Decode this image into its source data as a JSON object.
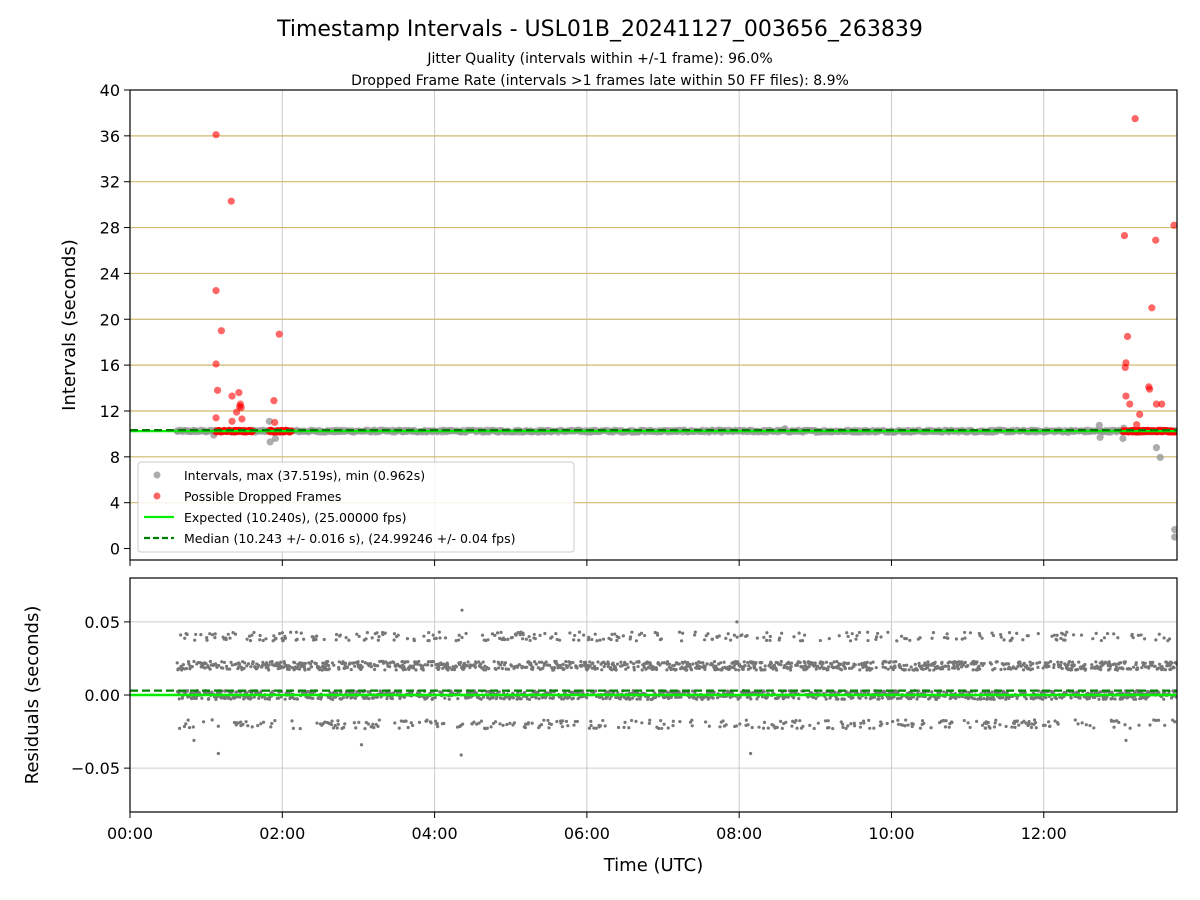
{
  "title": "Timestamp Intervals - USL01B_20241127_003656_263839",
  "subtitle_1": "Jitter Quality (intervals within +/-1 frame): 96.0%",
  "subtitle_2": "Dropped Frame Rate (intervals >1 frames late within 50 FF files): 8.9%",
  "chart_data": [
    {
      "type": "scatter",
      "ylabel": "Intervals (seconds)",
      "xlabel": "",
      "xlim": [
        0,
        13.75
      ],
      "ylim": [
        -1,
        40
      ],
      "grid": true,
      "legend_position": "lower-left",
      "xticks": [
        0,
        2,
        4,
        6,
        8,
        10,
        12
      ],
      "xtick_labels": [
        "",
        "",
        "",
        "",
        "",
        "",
        ""
      ],
      "yticks": [
        0,
        4,
        8,
        12,
        16,
        20,
        24,
        28,
        32,
        36,
        40
      ],
      "ytick_labels": [
        "0",
        "4",
        "8",
        "12",
        "16",
        "20",
        "24",
        "28",
        "32",
        "36",
        "40"
      ],
      "series": [
        {
          "name": "Intervals, max (37.519s), min (0.962s)",
          "color": "#999999",
          "points": [
            [
              0.62,
              10.24
            ],
            [
              1.1,
              9.9
            ],
            [
              1.83,
              11.1
            ],
            [
              1.84,
              9.3
            ],
            [
              1.91,
              9.6
            ],
            [
              8.6,
              10.45
            ],
            [
              12.73,
              10.75
            ],
            [
              12.74,
              9.7
            ],
            [
              13.04,
              9.6
            ],
            [
              13.05,
              10.5
            ],
            [
              13.48,
              8.8
            ],
            [
              13.53,
              7.95
            ],
            [
              13.72,
              1.65
            ],
            [
              13.72,
              1.0
            ],
            [
              13.73,
              10.2
            ]
          ]
        },
        {
          "name": "Possible Dropped Frames",
          "color": "#ff0000",
          "points": [
            [
              1.13,
              36.1
            ],
            [
              1.13,
              22.5
            ],
            [
              1.13,
              16.1
            ],
            [
              1.15,
              13.8
            ],
            [
              1.13,
              11.4
            ],
            [
              1.2,
              19.0
            ],
            [
              1.33,
              30.3
            ],
            [
              1.34,
              13.3
            ],
            [
              1.34,
              11.1
            ],
            [
              1.4,
              11.9
            ],
            [
              1.43,
              13.6
            ],
            [
              1.44,
              12.4
            ],
            [
              1.45,
              12.6
            ],
            [
              1.46,
              12.3
            ],
            [
              1.47,
              11.3
            ],
            [
              1.89,
              12.9
            ],
            [
              1.9,
              11.0
            ],
            [
              1.96,
              18.7
            ],
            [
              13.06,
              27.3
            ],
            [
              13.07,
              15.8
            ],
            [
              13.08,
              16.2
            ],
            [
              13.08,
              13.3
            ],
            [
              13.1,
              18.5
            ],
            [
              13.13,
              12.6
            ],
            [
              13.2,
              37.5
            ],
            [
              13.22,
              10.8
            ],
            [
              13.26,
              11.7
            ],
            [
              13.38,
              14.1
            ],
            [
              13.39,
              13.9
            ],
            [
              13.42,
              21.0
            ],
            [
              13.47,
              26.9
            ],
            [
              13.48,
              12.6
            ],
            [
              13.55,
              12.6
            ],
            [
              13.71,
              28.2
            ]
          ]
        },
        {
          "name": "Expected (10.240s), (25.00000 fps)",
          "color": "#00ee00",
          "value": 10.24
        },
        {
          "name": "Median (10.243 +/- 0.016 s), (24.99246 +/- 0.04 fps)",
          "color": "#007f00",
          "value": 10.243
        }
      ],
      "dense_baseline": {
        "x_range": [
          0.62,
          13.75
        ],
        "value": 10.24
      },
      "dropped_frame_bands": [
        [
          1.13,
          1.62
        ],
        [
          1.83,
          2.12
        ],
        [
          13.04,
          13.72
        ]
      ],
      "dropped_frame_band_value": 10.24
    },
    {
      "type": "scatter",
      "ylabel": "Residuals (seconds)",
      "xlabel": "Time (UTC)",
      "xlim": [
        0,
        13.75
      ],
      "ylim": [
        -0.08,
        0.08
      ],
      "grid": true,
      "xticks": [
        0,
        2,
        4,
        6,
        8,
        10,
        12
      ],
      "xtick_labels": [
        "00:00",
        "02:00",
        "04:00",
        "06:00",
        "08:00",
        "10:00",
        "12:00"
      ],
      "yticks": [
        -0.05,
        0.0,
        0.05
      ],
      "ytick_labels": [
        "−0.05",
        "0.00",
        "0.05"
      ],
      "residual_levels": [
        0.0,
        0.02,
        0.04,
        -0.02
      ],
      "residual_x_range": [
        0.62,
        13.75
      ],
      "outliers": [
        [
          4.36,
          0.058
        ],
        [
          7.97,
          0.05
        ],
        [
          4.35,
          -0.041
        ],
        [
          8.15,
          -0.04
        ],
        [
          1.16,
          -0.04
        ],
        [
          3.04,
          -0.034
        ],
        [
          13.08,
          -0.031
        ],
        [
          0.84,
          -0.031
        ]
      ],
      "series": [
        {
          "name": "Residuals",
          "color": "#777777"
        },
        {
          "name": "Expected",
          "color": "#00ee00",
          "value": 0.0
        },
        {
          "name": "Median",
          "color": "#007f00",
          "value": 0.003
        }
      ]
    }
  ]
}
